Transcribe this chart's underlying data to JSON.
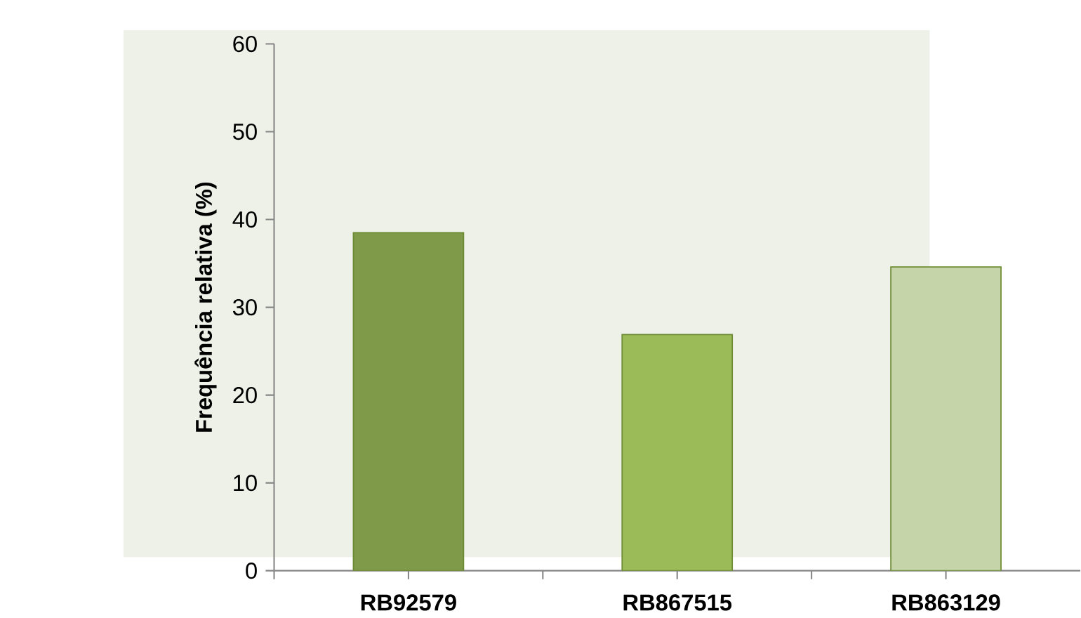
{
  "chart_data": {
    "type": "bar",
    "ylabel": "Frequência relativa (%)",
    "categories": [
      "RB92579",
      "RB867515",
      "RB863129"
    ],
    "values": [
      38.5,
      26.9,
      34.6
    ],
    "colors": [
      "#7f9a48",
      "#9bbb59",
      "#c6d5a9"
    ],
    "ylim": [
      0,
      60
    ],
    "yticks": [
      0,
      10,
      20,
      30,
      40,
      50,
      60
    ],
    "grid": false
  }
}
